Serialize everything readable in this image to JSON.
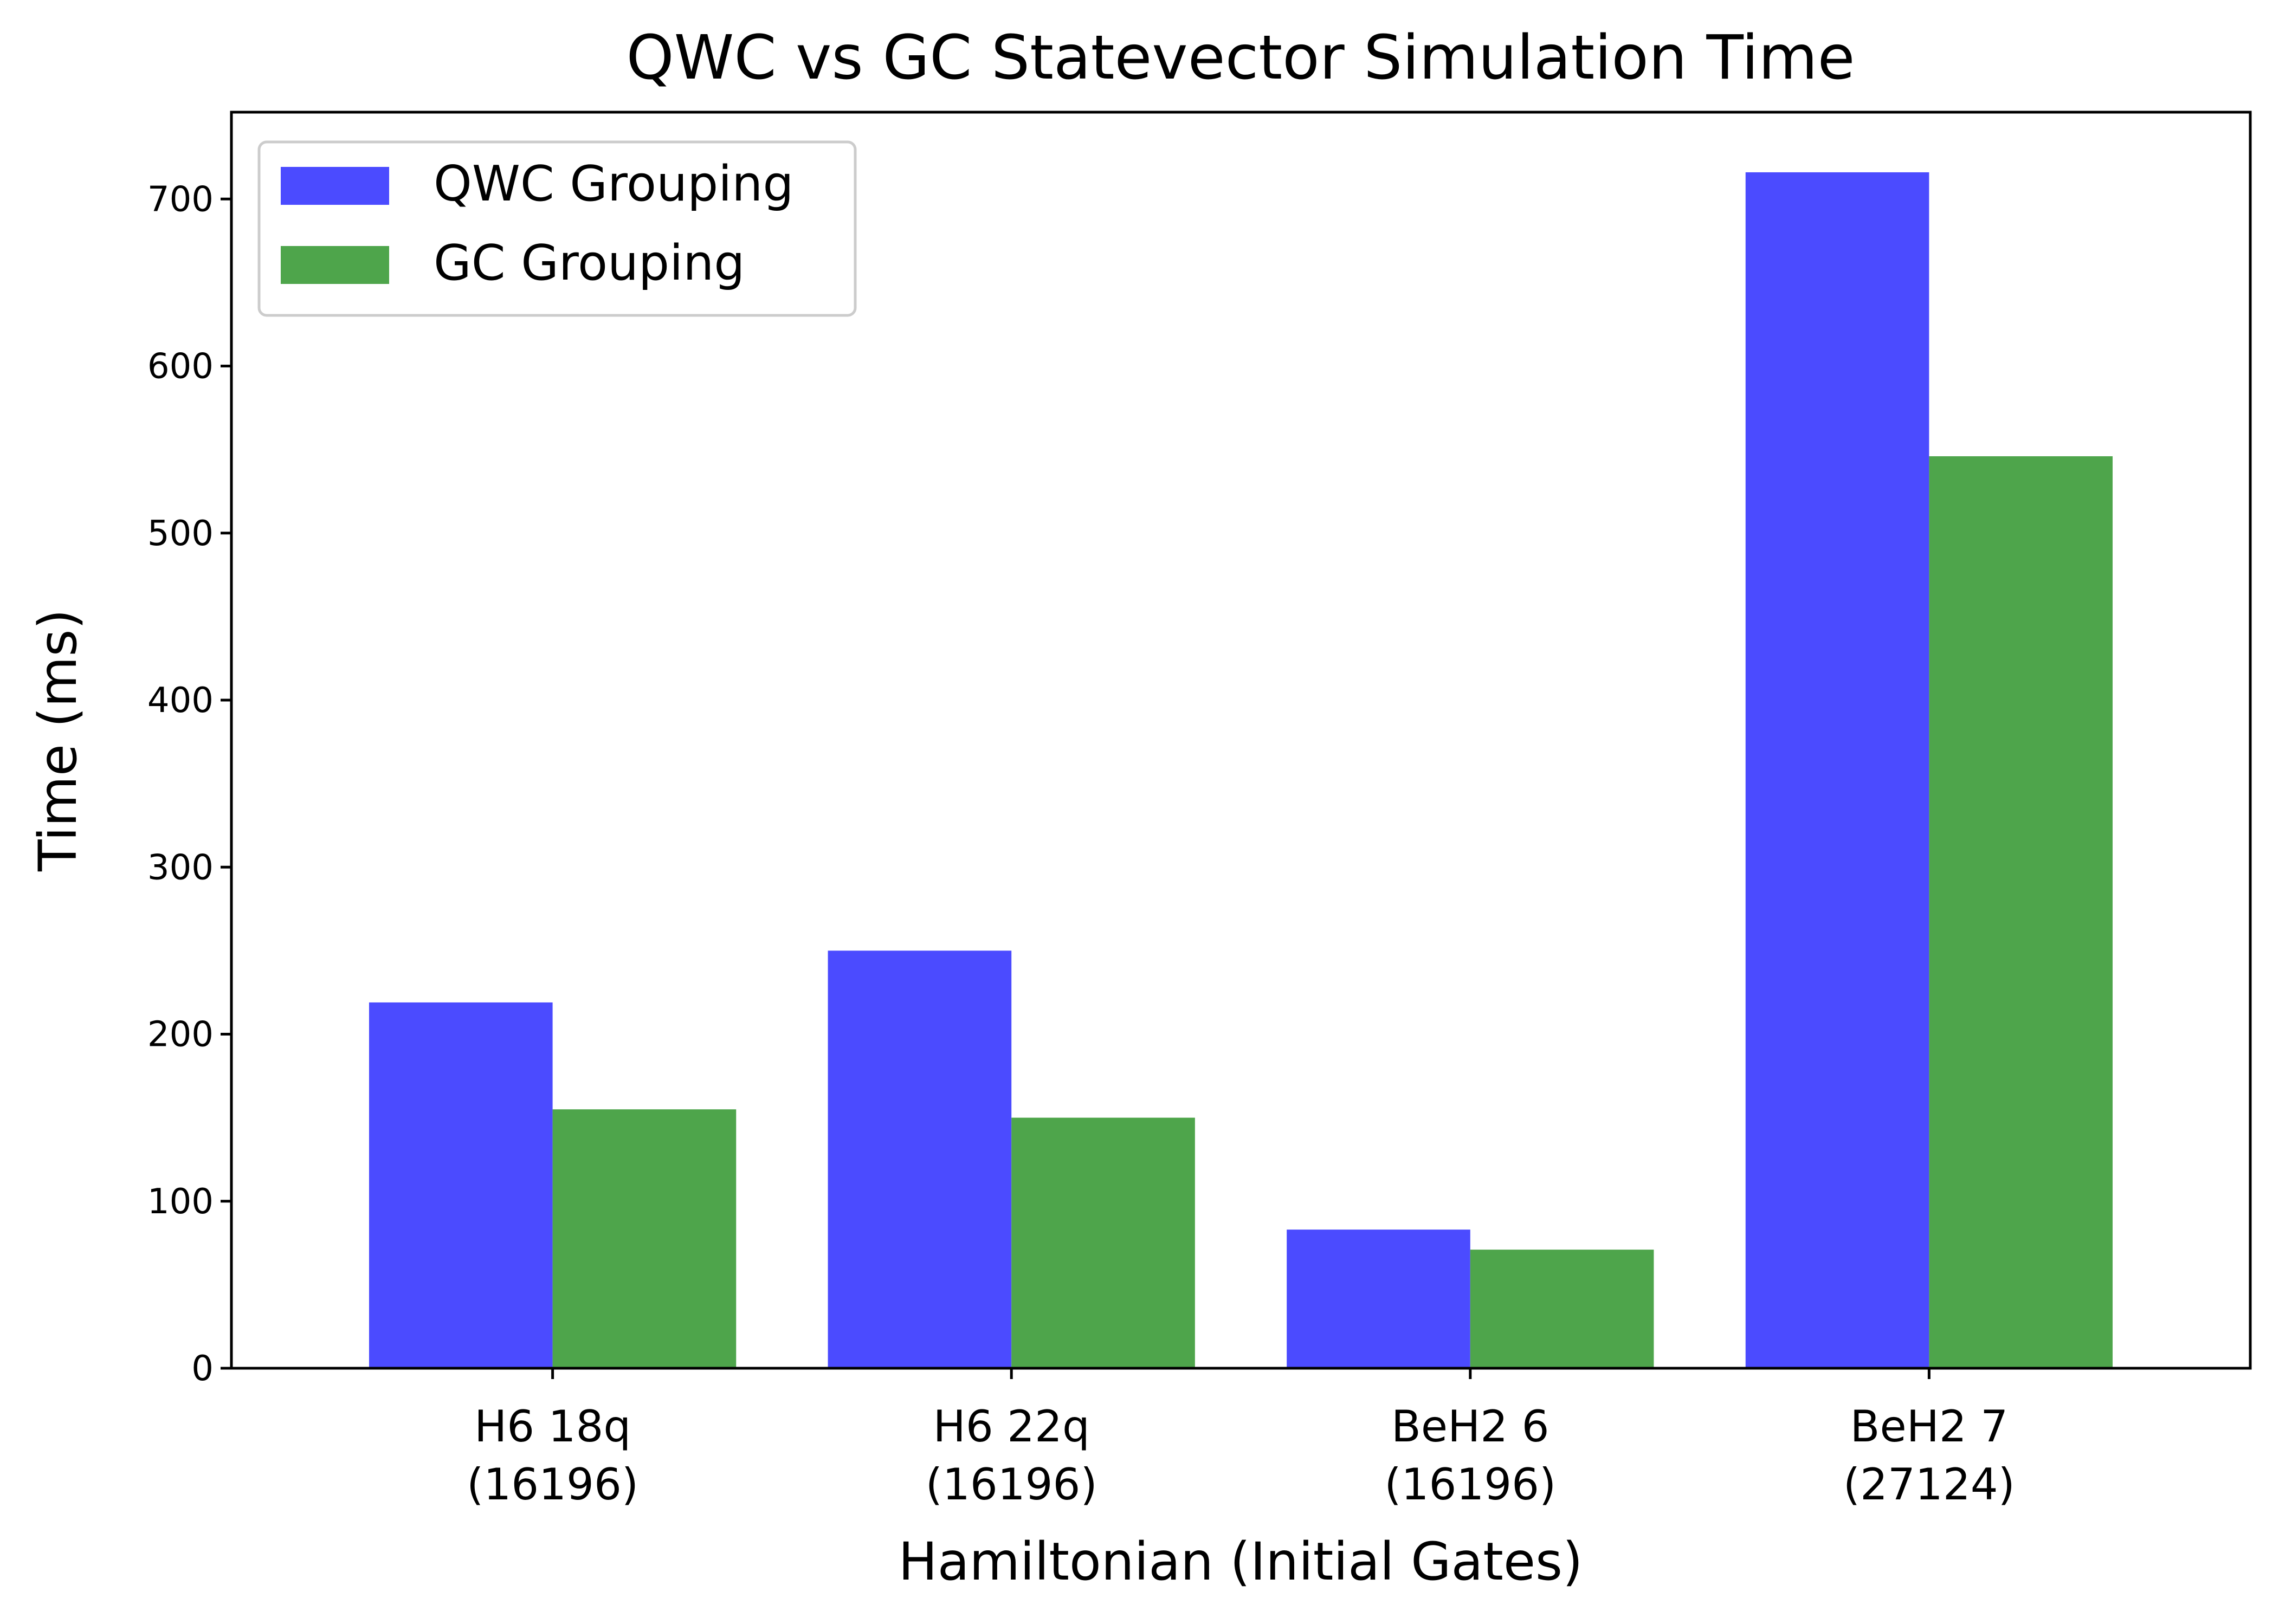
{
  "chart_data": {
    "type": "bar",
    "title": "QWC vs GC Statevector Simulation Time",
    "xlabel": "Hamiltonian (Initial Gates)",
    "ylabel": "Time (ms)",
    "categories": [
      [
        "H6 18q",
        "(16196)"
      ],
      [
        "H6 22q",
        "(16196)"
      ],
      [
        "BeH2 6",
        "(16196)"
      ],
      [
        "BeH2 7",
        "(27124)"
      ]
    ],
    "series": [
      {
        "name": "QWC Grouping",
        "color": "#4b4bff",
        "values": [
          219,
          250,
          83,
          716
        ]
      },
      {
        "name": "GC Grouping",
        "color": "#4ea54b",
        "values": [
          155,
          150,
          71,
          546
        ]
      }
    ],
    "ylim": [
      0,
      752
    ],
    "yticks": [
      0,
      100,
      200,
      300,
      400,
      500,
      600,
      700
    ],
    "grid": false,
    "legend": "top-left"
  }
}
